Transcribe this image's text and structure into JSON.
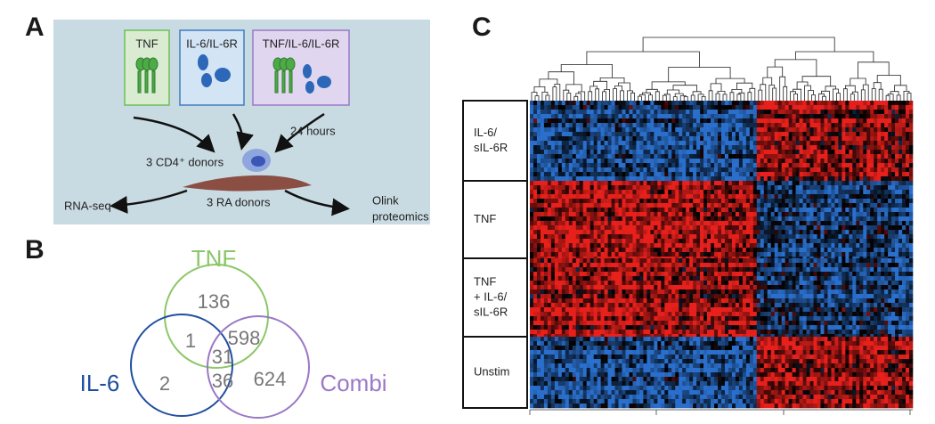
{
  "panel_a": {
    "letter": "A",
    "stimuli": [
      "TNF",
      "IL-6/IL-6R",
      "TNF/IL-6/IL-6R"
    ],
    "duration": "24 hours",
    "cells": "3 CD4⁺ donors",
    "fibroblasts": "3 RA donors",
    "output_left": "RNA-seq",
    "output_right": [
      "Olink",
      "proteomics"
    ]
  },
  "panel_b": {
    "letter": "B",
    "sets": [
      "TNF",
      "IL-6",
      "Combi"
    ],
    "counts": {
      "tnf_only": 136,
      "tnf_il6": 1,
      "tnf_combi": 598,
      "all": 31,
      "il6_only": 2,
      "il6_combi": 36,
      "combi_only": 624
    }
  },
  "panel_c": {
    "letter": "C",
    "groups": [
      [
        "IL-6/",
        "sIL-6R"
      ],
      [
        "TNF"
      ],
      [
        "TNF",
        "+ IL-6/",
        "sIL-6R"
      ],
      [
        "Unstim"
      ]
    ]
  }
}
